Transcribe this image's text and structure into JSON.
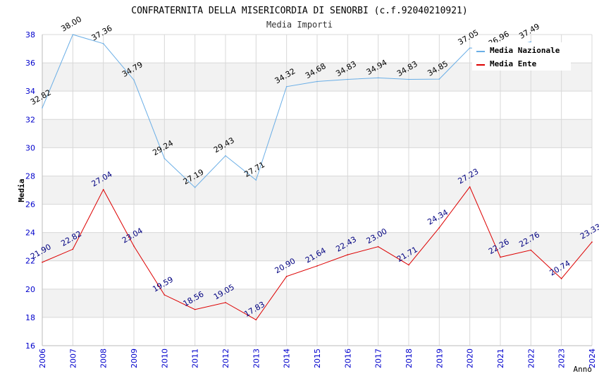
{
  "chart_data": {
    "type": "line",
    "title": "CONFRATERNITA DELLA MISERICORDIA DI SENORBI (c.f.92040210921)",
    "subtitle": "Media Importi",
    "xlabel": "Anno",
    "ylabel": "Media",
    "ylim": [
      16,
      38
    ],
    "yticks": [
      16,
      18,
      20,
      22,
      24,
      26,
      28,
      30,
      32,
      34,
      36,
      38
    ],
    "grid": true,
    "legend_position": "top-right",
    "categories": [
      "2006",
      "2007",
      "2008",
      "2009",
      "2010",
      "2011",
      "2012",
      "2013",
      "2014",
      "2015",
      "2016",
      "2017",
      "2018",
      "2019",
      "2020",
      "2021",
      "2022",
      "2023",
      "2024"
    ],
    "series": [
      {
        "name": "Media Nazionale",
        "color": "#6aaee6",
        "label_color": "#000000",
        "values": [
          32.82,
          38.0,
          37.36,
          34.79,
          29.24,
          27.19,
          29.43,
          27.71,
          34.32,
          34.68,
          34.83,
          34.94,
          34.83,
          34.85,
          37.05,
          36.96,
          37.49,
          null,
          null
        ],
        "labels": [
          "32.82",
          "38.00",
          "37.36",
          "34.79",
          "29.24",
          "27.19",
          "29.43",
          "27.71",
          "34.32",
          "34.68",
          "34.83",
          "34.94",
          "34.83",
          "34.85",
          "37.05",
          "36.96",
          "37.49",
          null,
          null
        ]
      },
      {
        "name": "Media Ente",
        "color": "#dd0000",
        "label_color": "#000080",
        "values": [
          21.9,
          22.82,
          27.04,
          23.04,
          19.59,
          18.56,
          19.05,
          17.83,
          20.9,
          21.64,
          22.43,
          23.0,
          21.71,
          24.34,
          27.23,
          22.26,
          22.76,
          20.74,
          23.33
        ],
        "labels": [
          "21.90",
          "22.82",
          "27.04",
          "23.04",
          "19.59",
          "18.56",
          "19.05",
          "17.83",
          "20.90",
          "21.64",
          "22.43",
          "23.00",
          "21.71",
          "24.34",
          "27.23",
          "22.26",
          "22.76",
          "20.74",
          "23.33"
        ]
      }
    ]
  },
  "colors": {
    "band": "#f2f2f2",
    "grid": "#d8d8d8",
    "axis_tick_text": "#0000cc",
    "title_text": "#000000",
    "subtitle_text": "#333333"
  }
}
